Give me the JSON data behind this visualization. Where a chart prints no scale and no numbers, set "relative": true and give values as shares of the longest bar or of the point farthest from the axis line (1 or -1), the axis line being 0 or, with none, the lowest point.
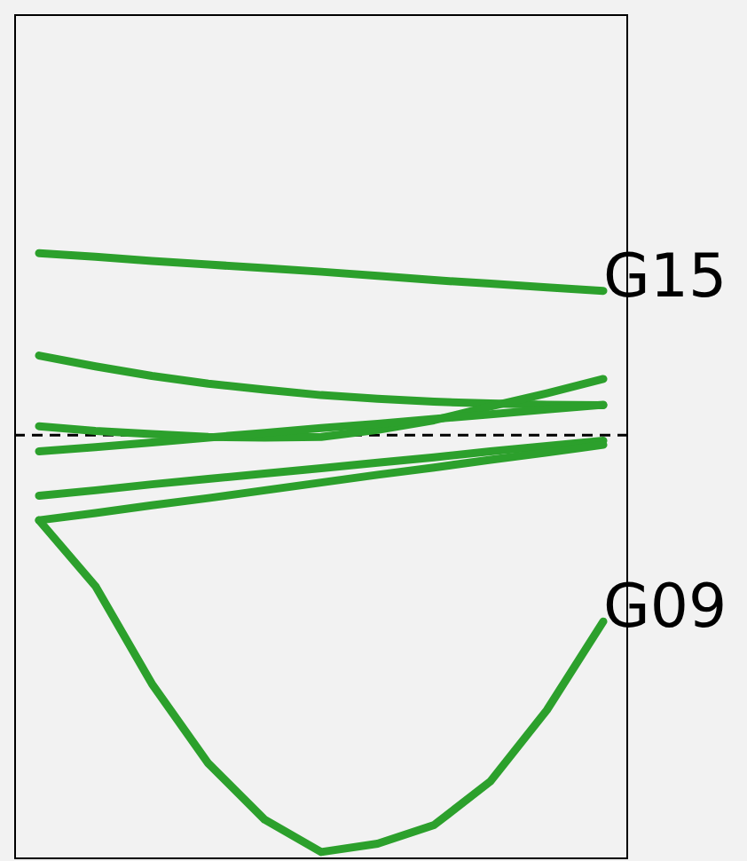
{
  "chart_data": {
    "type": "line",
    "relative": true,
    "categories": [
      null,
      null,
      null,
      null,
      null,
      null,
      null,
      null,
      null,
      null,
      null
    ],
    "series": [
      {
        "name": "G15",
        "color": "#2ca02c",
        "values": [
          1.0,
          0.994,
          0.987,
          0.981,
          0.975,
          0.969,
          0.962,
          0.955,
          0.949,
          0.943,
          0.937
        ]
      },
      {
        "color": "#2ca02c",
        "values": [
          0.829,
          0.811,
          0.795,
          0.782,
          0.772,
          0.763,
          0.757,
          0.752,
          0.749,
          0.747,
          0.746
        ]
      },
      {
        "color": "#2ca02c",
        "values": [
          0.711,
          0.703,
          0.698,
          0.693,
          0.692,
          0.693,
          0.705,
          0.721,
          0.744,
          0.766,
          0.79
        ]
      },
      {
        "color": "#2ca02c",
        "values": [
          0.669,
          0.676,
          0.684,
          0.692,
          0.7,
          0.708,
          0.715,
          0.723,
          0.731,
          0.739,
          0.747
        ]
      },
      {
        "color": "#2ca02c",
        "values": [
          0.595,
          0.604,
          0.614,
          0.623,
          0.632,
          0.641,
          0.65,
          0.659,
          0.669,
          0.678,
          0.687
        ]
      },
      {
        "color": "#2ca02c",
        "values": [
          0.554,
          0.566,
          0.579,
          0.591,
          0.604,
          0.617,
          0.63,
          0.642,
          0.655,
          0.667,
          0.68
        ]
      },
      {
        "name": "G09",
        "color": "#2ca02c",
        "values": [
          0.554,
          0.444,
          0.281,
          0.148,
          0.054,
          0.0,
          0.014,
          0.045,
          0.118,
          0.237,
          0.385
        ]
      }
    ],
    "ref_lines": [
      {
        "axis": "y",
        "value": 0.696,
        "color": "#000000",
        "line_style": "dashed"
      }
    ]
  }
}
